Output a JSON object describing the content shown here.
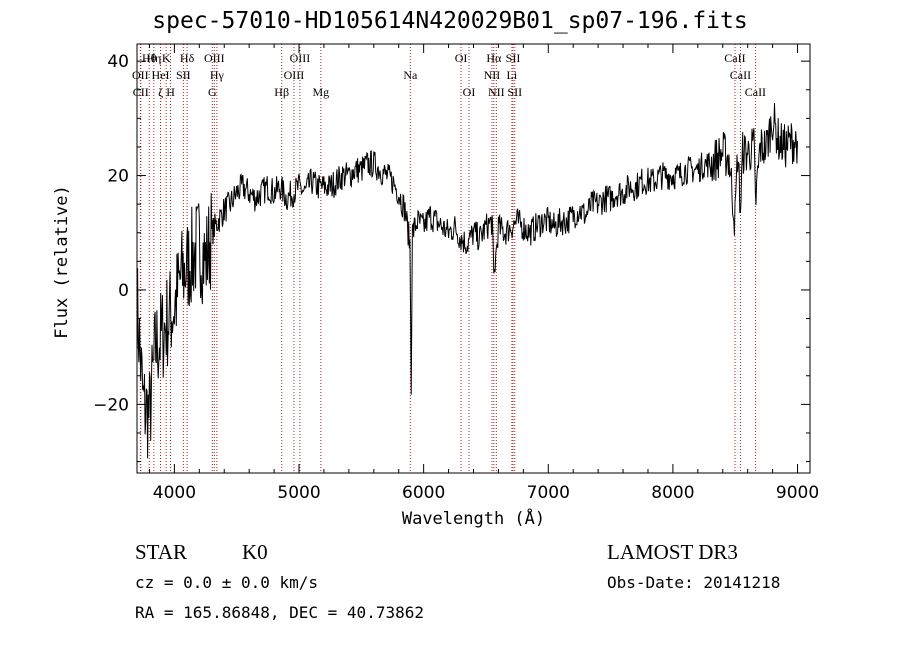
{
  "chart_data": {
    "type": "line",
    "title": "spec-57010-HD105614N420029B01_sp07-196.fits",
    "xlabel": "Wavelength (Å)",
    "ylabel": "Flux (relative)",
    "xlim": [
      3700,
      9100
    ],
    "ylim": [
      -32,
      43
    ],
    "x_ticks": [
      4000,
      5000,
      6000,
      7000,
      8000,
      9000
    ],
    "y_ticks": [
      -20,
      0,
      20,
      40
    ],
    "series": [
      {
        "name": "spectrum",
        "x": [
          3700,
          3750,
          3800,
          3850,
          3900,
          3950,
          4000,
          4050,
          4100,
          4150,
          4200,
          4250,
          4300,
          4350,
          4400,
          4450,
          4500,
          4550,
          4600,
          4650,
          4700,
          4750,
          4800,
          4850,
          4900,
          4950,
          5000,
          5050,
          5100,
          5150,
          5200,
          5250,
          5300,
          5350,
          5400,
          5450,
          5500,
          5550,
          5600,
          5650,
          5700,
          5750,
          5800,
          5850,
          5890,
          5900,
          5910,
          5950,
          6000,
          6050,
          6100,
          6150,
          6200,
          6250,
          6300,
          6350,
          6400,
          6450,
          6500,
          6550,
          6563,
          6600,
          6650,
          6700,
          6750,
          6800,
          6850,
          6900,
          6950,
          7000,
          7050,
          7100,
          7150,
          7200,
          7250,
          7300,
          7350,
          7400,
          7450,
          7500,
          7550,
          7600,
          7650,
          7700,
          7750,
          7800,
          7850,
          7900,
          7950,
          8000,
          8050,
          8100,
          8150,
          8200,
          8250,
          8300,
          8350,
          8400,
          8450,
          8498,
          8520,
          8542,
          8560,
          8600,
          8650,
          8662,
          8700,
          8750,
          8800,
          8850,
          8900,
          8950,
          9000
        ],
        "values": [
          -2,
          -20,
          -22,
          -10,
          -8,
          -5,
          -3,
          2,
          4,
          6,
          8,
          5,
          10,
          12,
          14,
          15,
          17,
          18,
          17,
          16,
          17,
          18,
          17,
          18,
          16,
          17,
          18,
          17,
          19,
          18,
          18,
          18,
          19,
          20,
          20,
          21,
          21,
          22,
          22,
          21,
          20,
          19,
          17,
          14,
          8,
          -16,
          10,
          12,
          11,
          13,
          12,
          11,
          10,
          11,
          9,
          8,
          10,
          9,
          11,
          12,
          2,
          11,
          10,
          11,
          12,
          11,
          10,
          11,
          12,
          12,
          11,
          12,
          12,
          13,
          14,
          13,
          15,
          15,
          16,
          16,
          17,
          17,
          18,
          18,
          19,
          19,
          19,
          20,
          20,
          20,
          20,
          21,
          21,
          21,
          22,
          22,
          23,
          24,
          23,
          12,
          24,
          14,
          24,
          24,
          25,
          15,
          25,
          25,
          30,
          26,
          25,
          26,
          26
        ]
      }
    ],
    "line_labels": [
      {
        "name": "Hθ",
        "x": 3798,
        "row": 1
      },
      {
        "name": "OII",
        "x": 3727,
        "row": 2
      },
      {
        "name": "CII",
        "x": 3730,
        "row": 3
      },
      {
        "name": "Hη",
        "x": 3835,
        "row": 1
      },
      {
        "name": "HeI",
        "x": 3889,
        "row": 2
      },
      {
        "name": "ζ",
        "x": 3889,
        "row": 3
      },
      {
        "name": "K",
        "x": 3934,
        "row": 1
      },
      {
        "name": "H",
        "x": 3969,
        "row": 3
      },
      {
        "name": "SII",
        "x": 4072,
        "row": 2
      },
      {
        "name": "Hδ",
        "x": 4102,
        "row": 1
      },
      {
        "name": "OIII",
        "x": 4320,
        "row": 1
      },
      {
        "name": "Hγ",
        "x": 4341,
        "row": 2
      },
      {
        "name": "G",
        "x": 4304,
        "row": 3
      },
      {
        "name": "Hβ",
        "x": 4861,
        "row": 3
      },
      {
        "name": "OIII",
        "x": 5007,
        "row": 1
      },
      {
        "name": "OIII",
        "x": 4959,
        "row": 2
      },
      {
        "name": "Mg",
        "x": 5175,
        "row": 3
      },
      {
        "name": "Na",
        "x": 5893,
        "row": 2
      },
      {
        "name": "OI",
        "x": 6300,
        "row": 1
      },
      {
        "name": "OI",
        "x": 6364,
        "row": 3
      },
      {
        "name": "Hα",
        "x": 6563,
        "row": 1
      },
      {
        "name": "NII",
        "x": 6548,
        "row": 2
      },
      {
        "name": "NII",
        "x": 6583,
        "row": 3
      },
      {
        "name": "SII",
        "x": 6717,
        "row": 1
      },
      {
        "name": "Li",
        "x": 6708,
        "row": 2
      },
      {
        "name": "SII",
        "x": 6731,
        "row": 3
      },
      {
        "name": "CaII",
        "x": 8498,
        "row": 1
      },
      {
        "name": "CaII",
        "x": 8542,
        "row": 2
      },
      {
        "name": "CaII",
        "x": 8662,
        "row": 3
      }
    ]
  },
  "info": {
    "object_class": "STAR",
    "subclass": "K0",
    "redshift": "cz = 0.0 ± 0.0 km/s",
    "coords": "RA = 165.86848, DEC =  40.73862",
    "survey": "LAMOST DR3",
    "obs_date": "Obs-Date: 20141218"
  },
  "colors": {
    "line_marker": "#b22222",
    "spectrum": "#000000",
    "axes": "#000000"
  }
}
